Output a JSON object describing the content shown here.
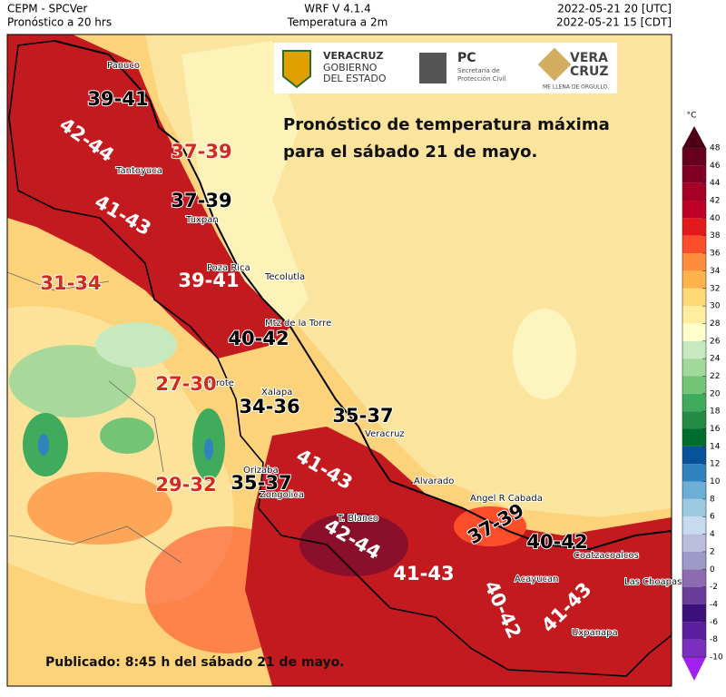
{
  "header": {
    "left": [
      "CEPM - SPCVer",
      "Pronóstico a 20 hrs"
    ],
    "center": [
      "WRF V 4.1.4",
      "Temperatura a 2m"
    ],
    "right": [
      "2022-05-21 20 [UTC]",
      "2022-05-21 15 [CDT]"
    ]
  },
  "logos": {
    "veracruz": [
      "VERACRUZ",
      "GOBIERNO",
      "DEL ESTADO"
    ],
    "pc": [
      "PC",
      "Secretaría de",
      "Protección Civil"
    ],
    "vera_cruz": [
      "VERA",
      "CRUZ",
      "ME LLENA DE ORGULLO"
    ]
  },
  "title": [
    "Pronóstico de temperatura máxima",
    "para el sábado 21 de mayo."
  ],
  "footer": "Publicado: 8:45 h del sábado 21 de mayo.",
  "places": [
    "Panuco",
    "Tantoyuca",
    "Tuxpan",
    "Poza Rica",
    "Tecolutla",
    "Mtz de la Torre",
    "Perote",
    "Xalapa",
    "Veracruz",
    "Alvarado",
    "Orizaba",
    "Zongolica",
    "Angel R Cabada",
    "T. Blanco",
    "Coatzacoalcos",
    "Acayucan",
    "Las Choapas",
    "Uxpanapa"
  ],
  "temp_labels": [
    {
      "text": "39-41",
      "color": "black"
    },
    {
      "text": "42-44",
      "color": "white"
    },
    {
      "text": "37-39",
      "color": "#d42a1e"
    },
    {
      "text": "41-43",
      "color": "white"
    },
    {
      "text": "37-39",
      "color": "black"
    },
    {
      "text": "31-34",
      "color": "#d42a1e"
    },
    {
      "text": "39-41",
      "color": "white"
    },
    {
      "text": "40-42",
      "color": "black"
    },
    {
      "text": "27-30",
      "color": "#d42a1e"
    },
    {
      "text": "34-36",
      "color": "black"
    },
    {
      "text": "35-37",
      "color": "black"
    },
    {
      "text": "41-43",
      "color": "white"
    },
    {
      "text": "29-32",
      "color": "#d42a1e"
    },
    {
      "text": "35-37",
      "color": "black"
    },
    {
      "text": "42-44",
      "color": "white"
    },
    {
      "text": "37-39",
      "color": "black"
    },
    {
      "text": "40-42",
      "color": "black"
    },
    {
      "text": "41-43",
      "color": "white"
    },
    {
      "text": "40-42",
      "color": "white"
    },
    {
      "text": "41-43",
      "color": "white"
    }
  ],
  "colorbar": {
    "unit": "°C",
    "ticks": [
      -10,
      -8,
      -6,
      -4,
      -2,
      0,
      2,
      4,
      6,
      8,
      10,
      12,
      14,
      16,
      18,
      20,
      22,
      24,
      26,
      28,
      30,
      32,
      34,
      36,
      38,
      40,
      42,
      44,
      46,
      48
    ],
    "colors": [
      "#7b2fbe",
      "#5a1e9e",
      "#3d0f7a",
      "#6a3d9a",
      "#8c6bb1",
      "#9e9ac8",
      "#bcbddc",
      "#c6dbef",
      "#9ecae1",
      "#6baed6",
      "#3182bd",
      "#08519c",
      "#006d2c",
      "#238b45",
      "#41ab5d",
      "#74c476",
      "#a1d99b",
      "#c7e9c0",
      "#ffffcc",
      "#ffeda0",
      "#fed976",
      "#feb24c",
      "#fd8d3c",
      "#fc4e2a",
      "#e31a1c",
      "#bd0026",
      "#a50026",
      "#800026",
      "#67001f"
    ],
    "under_color": "#a020f0",
    "over_color": "#4d0015"
  }
}
